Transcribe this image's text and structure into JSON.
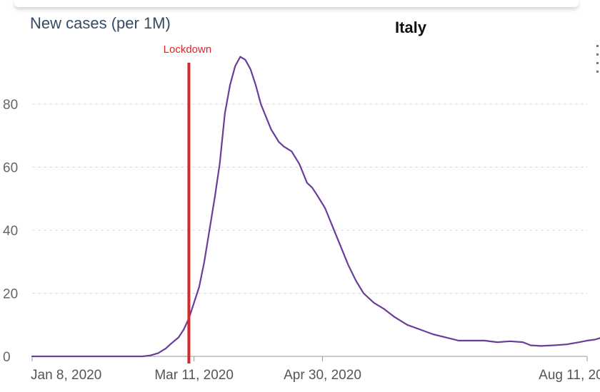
{
  "chart_data": {
    "type": "line",
    "ylabel": "New cases (per 1M)",
    "title": "Italy",
    "ylim": [
      0,
      100
    ],
    "y_ticks": [
      0,
      20,
      40,
      60,
      80
    ],
    "x_tick_labels": [
      "Jan 8, 2020",
      "Mar 11, 2020",
      "Apr 30, 2020",
      "Aug 11, 2020"
    ],
    "x_range": [
      "2020-01-08",
      "2020-08-11"
    ],
    "grid": "horizontal dashed",
    "annotations": [
      {
        "label": "Lockdown",
        "x": "2020-03-09",
        "color": "#d9262b"
      }
    ],
    "series": [
      {
        "color": "#6a3d9a",
        "points": [
          [
            "2020-01-08",
            0
          ],
          [
            "2020-01-20",
            0
          ],
          [
            "2020-02-01",
            0
          ],
          [
            "2020-02-10",
            0
          ],
          [
            "2020-02-20",
            0
          ],
          [
            "2020-02-23",
            0.3
          ],
          [
            "2020-02-26",
            1
          ],
          [
            "2020-02-29",
            2.5
          ],
          [
            "2020-03-02",
            4
          ],
          [
            "2020-03-05",
            6
          ],
          [
            "2020-03-07",
            8.5
          ],
          [
            "2020-03-09",
            12
          ],
          [
            "2020-03-11",
            17
          ],
          [
            "2020-03-13",
            22
          ],
          [
            "2020-03-15",
            30
          ],
          [
            "2020-03-17",
            40
          ],
          [
            "2020-03-19",
            50
          ],
          [
            "2020-03-21",
            61
          ],
          [
            "2020-03-23",
            77
          ],
          [
            "2020-03-25",
            86
          ],
          [
            "2020-03-27",
            92
          ],
          [
            "2020-03-29",
            95
          ],
          [
            "2020-03-31",
            94
          ],
          [
            "2020-04-02",
            91
          ],
          [
            "2020-04-04",
            86
          ],
          [
            "2020-04-06",
            80
          ],
          [
            "2020-04-08",
            76
          ],
          [
            "2020-04-10",
            72
          ],
          [
            "2020-04-13",
            68
          ],
          [
            "2020-04-15",
            66.5
          ],
          [
            "2020-04-18",
            65
          ],
          [
            "2020-04-21",
            61
          ],
          [
            "2020-04-24",
            55
          ],
          [
            "2020-04-26",
            53.5
          ],
          [
            "2020-04-28",
            51
          ],
          [
            "2020-05-01",
            47
          ],
          [
            "2020-05-04",
            41
          ],
          [
            "2020-05-07",
            35
          ],
          [
            "2020-05-10",
            29
          ],
          [
            "2020-05-13",
            24
          ],
          [
            "2020-05-16",
            20
          ],
          [
            "2020-05-20",
            17
          ],
          [
            "2020-05-24",
            15
          ],
          [
            "2020-05-28",
            12.5
          ],
          [
            "2020-06-02",
            10
          ],
          [
            "2020-06-07",
            8.5
          ],
          [
            "2020-06-12",
            7
          ],
          [
            "2020-06-17",
            6
          ],
          [
            "2020-06-22",
            5
          ],
          [
            "2020-06-27",
            5
          ],
          [
            "2020-07-02",
            5
          ],
          [
            "2020-07-07",
            4.5
          ],
          [
            "2020-07-12",
            4.8
          ],
          [
            "2020-07-17",
            4.5
          ],
          [
            "2020-07-20",
            3.5
          ],
          [
            "2020-07-24",
            3.3
          ],
          [
            "2020-07-29",
            3.5
          ],
          [
            "2020-08-03",
            3.8
          ],
          [
            "2020-08-08",
            4.5
          ],
          [
            "2020-08-11",
            5
          ],
          [
            "2020-08-14",
            5.3
          ],
          [
            "2020-08-18",
            6.3
          ]
        ]
      }
    ]
  }
}
